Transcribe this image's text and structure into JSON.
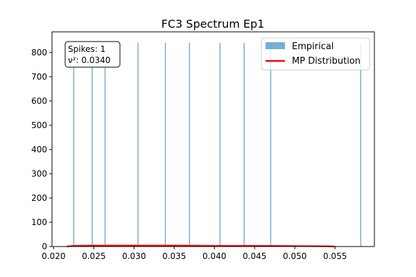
{
  "chart_data": {
    "type": "bar",
    "title": "FC3 Spectrum Ep1",
    "xlabel": "",
    "ylabel": "",
    "xlim": [
      0.0198,
      0.0599
    ],
    "ylim": [
      0,
      885
    ],
    "x_ticks": [
      0.02,
      0.025,
      0.03,
      0.035,
      0.04,
      0.045,
      0.05,
      0.055
    ],
    "x_tick_labels": [
      "0.020",
      "0.025",
      "0.030",
      "0.035",
      "0.040",
      "0.045",
      "0.050",
      "0.055"
    ],
    "y_ticks": [
      0,
      100,
      200,
      300,
      400,
      500,
      600,
      700,
      800
    ],
    "y_tick_labels": [
      "0",
      "100",
      "200",
      "300",
      "400",
      "500",
      "600",
      "700",
      "800"
    ],
    "grid": false,
    "legend_position": "upper-right",
    "series": [
      {
        "name": "Empirical",
        "kind": "histogram",
        "color": "#1f77b4",
        "opacity": 0.6,
        "bins": [
          {
            "x": 0.0225,
            "value": 840
          },
          {
            "x": 0.0248,
            "value": 840
          },
          {
            "x": 0.0264,
            "value": 840
          },
          {
            "x": 0.0305,
            "value": 840
          },
          {
            "x": 0.0339,
            "value": 840
          },
          {
            "x": 0.0369,
            "value": 840
          },
          {
            "x": 0.0407,
            "value": 840
          },
          {
            "x": 0.0437,
            "value": 840
          },
          {
            "x": 0.047,
            "value": 840
          },
          {
            "x": 0.0582,
            "value": 840
          }
        ]
      },
      {
        "name": "MP Distribution",
        "kind": "line",
        "color": "#ff0000",
        "points": [
          {
            "x": 0.0216,
            "y": 0
          },
          {
            "x": 0.0225,
            "y": 3
          },
          {
            "x": 0.025,
            "y": 4
          },
          {
            "x": 0.03,
            "y": 4
          },
          {
            "x": 0.035,
            "y": 4
          },
          {
            "x": 0.04,
            "y": 3
          },
          {
            "x": 0.045,
            "y": 3
          },
          {
            "x": 0.05,
            "y": 2
          },
          {
            "x": 0.054,
            "y": 1
          },
          {
            "x": 0.055,
            "y": 0
          }
        ]
      }
    ],
    "annotation": {
      "line1": "Spikes: 1",
      "line2": "ν²: 0.0340"
    }
  }
}
